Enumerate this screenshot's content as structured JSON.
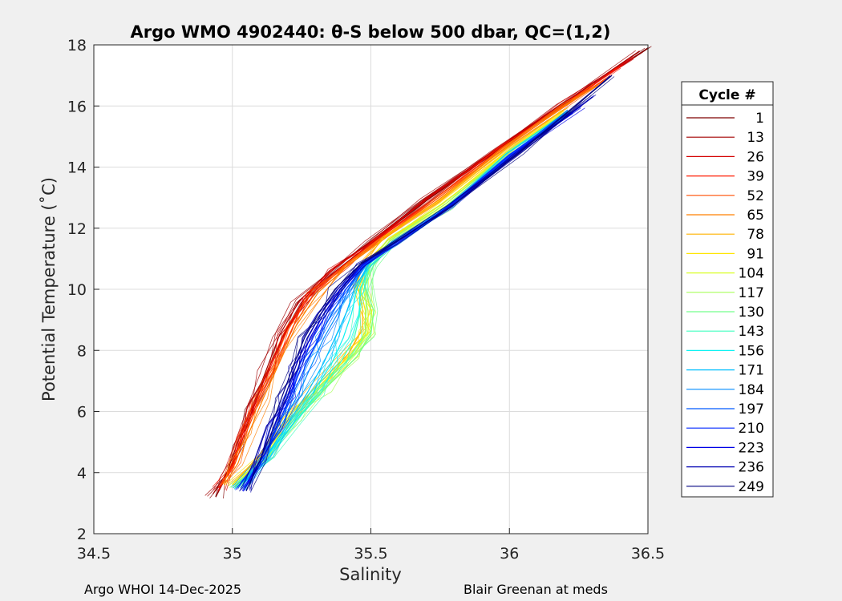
{
  "chart_data": {
    "type": "line",
    "title": "Argo WMO 4902440: θ-S below 500 dbar,  QC=(1,2)",
    "xlabel": "Salinity",
    "ylabel": "Potential Temperature (˚C)",
    "xlim": [
      34.5,
      36.5
    ],
    "ylim": [
      2,
      18
    ],
    "xticks": [
      "34.5",
      "35",
      "35.5",
      "36",
      "36.5"
    ],
    "yticks": [
      "2",
      "4",
      "6",
      "8",
      "10",
      "12",
      "14",
      "16",
      "18"
    ],
    "grid": true,
    "legend": {
      "title": "Cycle #",
      "placement": "right-outside",
      "entries": [
        {
          "label": "1",
          "color": "#7f0000"
        },
        {
          "label": "13",
          "color": "#a30000"
        },
        {
          "label": "26",
          "color": "#d40000"
        },
        {
          "label": "39",
          "color": "#ff1a00"
        },
        {
          "label": "52",
          "color": "#ff4d00"
        },
        {
          "label": "65",
          "color": "#ff8000"
        },
        {
          "label": "78",
          "color": "#ffb300"
        },
        {
          "label": "91",
          "color": "#ffe600"
        },
        {
          "label": "104",
          "color": "#d9ff26"
        },
        {
          "label": "117",
          "color": "#a6ff59"
        },
        {
          "label": "130",
          "color": "#73ff8c"
        },
        {
          "label": "143",
          "color": "#40ffbf"
        },
        {
          "label": "156",
          "color": "#0df2f2"
        },
        {
          "label": "171",
          "color": "#00bfff"
        },
        {
          "label": "184",
          "color": "#008cff"
        },
        {
          "label": "197",
          "color": "#0059ff"
        },
        {
          "label": "210",
          "color": "#0026ff"
        },
        {
          "label": "223",
          "color": "#0000e6"
        },
        {
          "label": "236",
          "color": "#0000b3"
        },
        {
          "label": "249",
          "color": "#000080"
        }
      ]
    },
    "series": [
      {
        "cycle": "1",
        "color": "#7f0000",
        "x": [
          34.94,
          34.98,
          35.03,
          35.07,
          35.12,
          35.18,
          35.25,
          35.36,
          35.5,
          35.7,
          35.95,
          36.2,
          36.5
        ],
        "y": [
          3.2,
          3.9,
          4.9,
          6.0,
          7.2,
          8.4,
          9.5,
          10.5,
          11.5,
          12.9,
          14.5,
          16.1,
          17.9
        ]
      },
      {
        "cycle": "13",
        "color": "#a30000",
        "x": [
          34.93,
          34.98,
          35.02,
          35.07,
          35.12,
          35.17,
          35.24,
          35.35,
          35.49,
          35.69,
          35.94,
          36.18,
          36.47
        ],
        "y": [
          3.3,
          4.0,
          5.0,
          6.1,
          7.3,
          8.5,
          9.6,
          10.6,
          11.5,
          12.9,
          14.5,
          16.0,
          17.8
        ]
      },
      {
        "cycle": "26",
        "color": "#d40000",
        "x": [
          34.95,
          34.99,
          35.03,
          35.08,
          35.13,
          35.19,
          35.26,
          35.37,
          35.51,
          35.71,
          35.96,
          36.2,
          36.45
        ],
        "y": [
          3.4,
          4.1,
          5.1,
          6.2,
          7.4,
          8.6,
          9.7,
          10.7,
          11.6,
          13.0,
          14.6,
          16.1,
          17.6
        ]
      },
      {
        "cycle": "39",
        "color": "#ff1a00",
        "x": [
          34.95,
          35.0,
          35.04,
          35.09,
          35.14,
          35.2,
          35.28,
          35.39,
          35.52,
          35.72,
          35.97,
          36.21,
          36.4
        ],
        "y": [
          3.5,
          4.2,
          5.2,
          6.3,
          7.5,
          8.7,
          9.8,
          10.7,
          11.6,
          12.9,
          14.6,
          16.1,
          17.3
        ]
      },
      {
        "cycle": "52",
        "color": "#ff4d00",
        "x": [
          34.96,
          35.01,
          35.05,
          35.1,
          35.16,
          35.22,
          35.3,
          35.41,
          35.53,
          35.73,
          35.98,
          36.2,
          36.35
        ],
        "y": [
          3.6,
          4.3,
          5.3,
          6.4,
          7.6,
          8.8,
          9.9,
          10.8,
          11.6,
          12.9,
          14.6,
          16.0,
          16.9
        ]
      },
      {
        "cycle": "65",
        "color": "#ff8000",
        "x": [
          34.97,
          35.02,
          35.06,
          35.11,
          35.17,
          35.23,
          35.31,
          35.42,
          35.54,
          35.74,
          35.98,
          36.2,
          36.32
        ],
        "y": [
          3.6,
          4.3,
          5.3,
          6.4,
          7.6,
          8.8,
          9.9,
          10.8,
          11.6,
          12.9,
          14.6,
          16.0,
          16.7
        ]
      },
      {
        "cycle": "78",
        "color": "#ffb300",
        "x": [
          35.0,
          35.1,
          35.2,
          35.3,
          35.42,
          35.47,
          35.47,
          35.45,
          35.48,
          35.55,
          35.75,
          35.99,
          36.2
        ],
        "y": [
          3.6,
          4.6,
          5.8,
          6.8,
          7.9,
          8.7,
          9.4,
          10.2,
          11.0,
          11.7,
          12.9,
          14.6,
          15.9
        ]
      },
      {
        "cycle": "91",
        "color": "#ffe600",
        "x": [
          35.0,
          35.11,
          35.21,
          35.31,
          35.43,
          35.48,
          35.48,
          35.46,
          35.49,
          35.56,
          35.76,
          35.99,
          36.2
        ],
        "y": [
          3.6,
          4.6,
          5.8,
          6.8,
          7.9,
          8.6,
          9.3,
          10.1,
          10.9,
          11.6,
          12.8,
          14.5,
          15.8
        ]
      },
      {
        "cycle": "104",
        "color": "#d9ff26",
        "x": [
          35.01,
          35.12,
          35.22,
          35.32,
          35.44,
          35.49,
          35.49,
          35.47,
          35.5,
          35.57,
          35.77,
          36.0,
          36.2
        ],
        "y": [
          3.6,
          4.6,
          5.8,
          6.8,
          7.9,
          8.6,
          9.3,
          10.1,
          10.9,
          11.6,
          12.8,
          14.5,
          15.8
        ]
      },
      {
        "cycle": "117",
        "color": "#a6ff59",
        "x": [
          35.01,
          35.12,
          35.22,
          35.33,
          35.45,
          35.5,
          35.5,
          35.48,
          35.5,
          35.57,
          35.77,
          36.0,
          36.2
        ],
        "y": [
          3.5,
          4.5,
          5.7,
          6.7,
          7.8,
          8.6,
          9.3,
          10.1,
          10.9,
          11.6,
          12.8,
          14.5,
          15.8
        ]
      },
      {
        "cycle": "130",
        "color": "#73ff8c",
        "x": [
          35.02,
          35.13,
          35.23,
          35.33,
          35.45,
          35.5,
          35.51,
          35.48,
          35.51,
          35.58,
          35.78,
          36.0,
          36.21
        ],
        "y": [
          3.5,
          4.5,
          5.7,
          6.7,
          7.8,
          8.5,
          9.3,
          10.1,
          10.8,
          11.5,
          12.7,
          14.5,
          15.8
        ]
      },
      {
        "cycle": "143",
        "color": "#40ffbf",
        "x": [
          35.02,
          35.12,
          35.22,
          35.31,
          35.39,
          35.44,
          35.46,
          35.46,
          35.5,
          35.58,
          35.78,
          36.0,
          36.21
        ],
        "y": [
          3.5,
          4.5,
          5.6,
          6.6,
          7.6,
          8.4,
          9.2,
          10.0,
          10.8,
          11.5,
          12.7,
          14.4,
          15.8
        ]
      },
      {
        "cycle": "156",
        "color": "#0df2f2",
        "x": [
          35.03,
          35.12,
          35.21,
          35.29,
          35.36,
          35.4,
          35.43,
          35.45,
          35.49,
          35.58,
          35.78,
          36.0,
          36.21
        ],
        "y": [
          3.5,
          4.5,
          5.6,
          6.6,
          7.6,
          8.4,
          9.2,
          10.0,
          10.8,
          11.5,
          12.7,
          14.4,
          15.8
        ]
      },
      {
        "cycle": "171",
        "color": "#00bfff",
        "x": [
          35.03,
          35.12,
          35.2,
          35.27,
          35.33,
          35.37,
          35.41,
          35.44,
          35.49,
          35.58,
          35.78,
          36.0,
          36.21
        ],
        "y": [
          3.5,
          4.5,
          5.6,
          6.6,
          7.6,
          8.4,
          9.2,
          10.0,
          10.8,
          11.5,
          12.7,
          14.4,
          15.8
        ]
      },
      {
        "cycle": "184",
        "color": "#008cff",
        "x": [
          35.03,
          35.11,
          35.18,
          35.24,
          35.29,
          35.33,
          35.38,
          35.42,
          35.48,
          35.58,
          35.78,
          36.0,
          36.22
        ],
        "y": [
          3.5,
          4.5,
          5.6,
          6.6,
          7.6,
          8.4,
          9.2,
          10.0,
          10.8,
          11.5,
          12.7,
          14.4,
          15.8
        ]
      },
      {
        "cycle": "197",
        "color": "#0059ff",
        "x": [
          35.04,
          35.11,
          35.17,
          35.22,
          35.27,
          35.31,
          35.36,
          35.41,
          35.48,
          35.58,
          35.78,
          36.0,
          36.22
        ],
        "y": [
          3.5,
          4.5,
          5.6,
          6.6,
          7.6,
          8.4,
          9.2,
          10.0,
          10.8,
          11.5,
          12.7,
          14.4,
          15.8
        ]
      },
      {
        "cycle": "210",
        "color": "#0026ff",
        "x": [
          35.04,
          35.11,
          35.16,
          35.21,
          35.25,
          35.29,
          35.34,
          35.4,
          35.47,
          35.58,
          35.78,
          36.0,
          36.23
        ],
        "y": [
          3.4,
          4.4,
          5.5,
          6.5,
          7.5,
          8.4,
          9.2,
          10.0,
          10.8,
          11.5,
          12.7,
          14.4,
          15.8
        ]
      },
      {
        "cycle": "223",
        "color": "#0000e6",
        "x": [
          35.04,
          35.1,
          35.15,
          35.2,
          35.24,
          35.28,
          35.33,
          35.39,
          35.47,
          35.58,
          35.79,
          36.01,
          36.26
        ],
        "y": [
          3.4,
          4.4,
          5.5,
          6.5,
          7.5,
          8.4,
          9.2,
          10.0,
          10.8,
          11.5,
          12.7,
          14.4,
          16.0
        ]
      },
      {
        "cycle": "236",
        "color": "#0000b3",
        "x": [
          35.05,
          35.1,
          35.15,
          35.19,
          35.23,
          35.27,
          35.32,
          35.38,
          35.46,
          35.58,
          35.79,
          36.02,
          36.3
        ],
        "y": [
          3.4,
          4.4,
          5.5,
          6.5,
          7.5,
          8.4,
          9.2,
          10.0,
          10.8,
          11.5,
          12.7,
          14.4,
          16.3
        ]
      },
      {
        "cycle": "249",
        "color": "#000080",
        "x": [
          35.05,
          35.1,
          35.14,
          35.18,
          35.22,
          35.26,
          35.31,
          35.37,
          35.46,
          35.58,
          35.79,
          36.04,
          36.37
        ],
        "y": [
          3.4,
          4.4,
          5.5,
          6.5,
          7.5,
          8.4,
          9.2,
          10.0,
          10.8,
          11.5,
          12.7,
          14.5,
          17.0
        ]
      }
    ]
  },
  "footer": {
    "left": "Argo WHOI 14-Dec-2025",
    "right": "Blair Greenan at meds"
  }
}
